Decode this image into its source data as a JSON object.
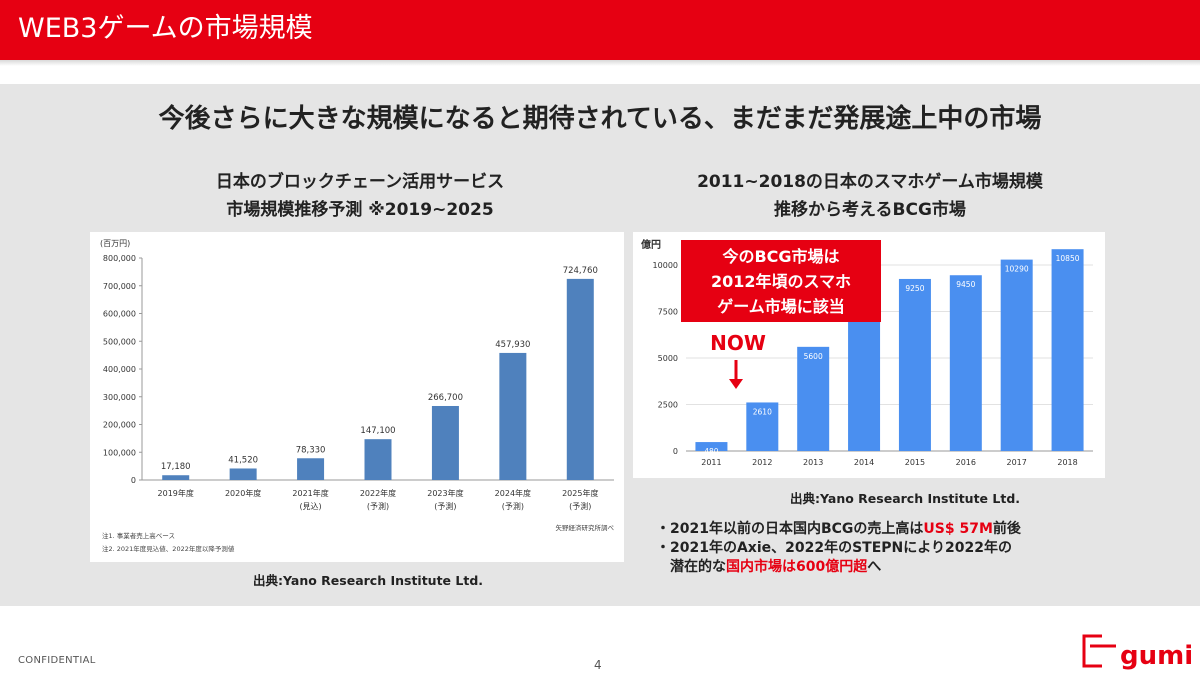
{
  "header": {
    "title": "WEB3ゲームの市場規模"
  },
  "subtitle": "今後さらに大きな規模になると期待されている、まだまだ発展途上中の市場",
  "left_chart": {
    "title_line1": "日本のブロックチェーン活用サービス",
    "title_line2": "市場規模推移予測 ※2019~2025",
    "source": "出典:Yano Research Institute Ltd."
  },
  "right_chart": {
    "title_line1": "2011~2018の日本のスマホゲーム市場規模",
    "title_line2": "推移から考えるBCG市場",
    "source": "出典:Yano Research Institute Ltd.",
    "callout_line1": "今のBCG市場は",
    "callout_line2": "2012年頃のスマホ",
    "callout_line3": "ゲーム市場に該当",
    "now_label": "NOW"
  },
  "bullets": {
    "b1_pre": "・2021年以前の日本国内BCGの売上高は",
    "b1_red": "US$ 57M",
    "b1_post": "前後",
    "b2": "・2021年のAxie、2022年のSTEPNにより2022年の",
    "b3_pre": "潜在的な",
    "b3_red": "国内市場は600億円超",
    "b3_post": "へ"
  },
  "footer": {
    "confidential": "CONFIDENTIAL",
    "page": "4",
    "logo_text": "gumi"
  },
  "colors": {
    "accent": "#e60012",
    "left_bar": "#4f81bd",
    "right_bar": "#4a8ff0"
  },
  "chart_data": [
    {
      "type": "bar",
      "title": "日本のブロックチェーン活用サービス 市場規模推移予測 ※2019~2025",
      "ylabel": "(百万円)",
      "ylim": [
        0,
        800000
      ],
      "yticks": [
        "0",
        "100,000",
        "200,000",
        "300,000",
        "400,000",
        "500,000",
        "600,000",
        "700,000",
        "800,000"
      ],
      "categories": [
        {
          "l1": "2019年度",
          "l2": ""
        },
        {
          "l1": "2020年度",
          "l2": ""
        },
        {
          "l1": "2021年度",
          "l2": "(見込)"
        },
        {
          "l1": "2022年度",
          "l2": "(予測)"
        },
        {
          "l1": "2023年度",
          "l2": "(予測)"
        },
        {
          "l1": "2024年度",
          "l2": "(予測)"
        },
        {
          "l1": "2025年度",
          "l2": "(予測)"
        }
      ],
      "values": [
        17180,
        41520,
        78330,
        147100,
        266700,
        457930,
        724760
      ],
      "labels": [
        "17,180",
        "41,520",
        "78,330",
        "147,100",
        "266,700",
        "457,930",
        "724,760"
      ],
      "notes": [
        "注1. 事業者売上高ベース",
        "注2. 2021年度見込値、2022年度以降予測値"
      ],
      "credit": "矢野経済研究所調べ",
      "grid": false
    },
    {
      "type": "bar",
      "title": "2011~2018の日本のスマホゲーム市場規模 推移から考えるBCG市場",
      "ylabel": "億円",
      "ylim": [
        0,
        10850
      ],
      "yticks": [
        "0",
        "2500",
        "5000",
        "7500",
        "10000"
      ],
      "categories": [
        "2011",
        "2012",
        "2013",
        "2014",
        "2015",
        "2016",
        "2017",
        "2018"
      ],
      "values": [
        480,
        2610,
        5600,
        7700,
        9250,
        9450,
        10290,
        10850
      ],
      "labels": [
        "480",
        "2610",
        "5600",
        "",
        "9250",
        "9450",
        "10290",
        "10850"
      ],
      "grid": true
    }
  ]
}
